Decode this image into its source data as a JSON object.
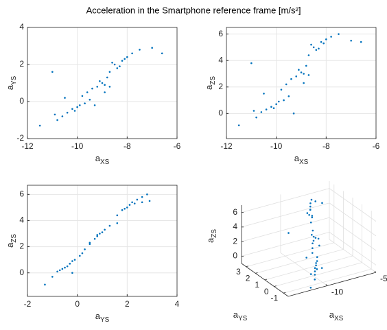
{
  "title": "Acceleration in the Smartphone reference frame [m/s²]",
  "chart_data": [
    {
      "type": "scatter",
      "xlabel": "aXS",
      "ylabel": "aYS",
      "color": "#0072bd",
      "grid": true,
      "xlim": [
        -12,
        -6
      ],
      "ylim": [
        -2,
        4
      ],
      "xticks": [
        -12,
        -10,
        -8,
        -6
      ],
      "yticks": [
        -2,
        0,
        2,
        4
      ],
      "x": [
        -10.2,
        -9.9,
        -10.4,
        -9.7,
        -10.0,
        -10.6,
        -9.5,
        -10.8,
        -11.5,
        -10.1,
        -9.2,
        -8.9,
        -9.4,
        -9.0,
        -8.7,
        -9.6,
        -9.1,
        -8.8,
        -8.5,
        -8.2,
        -8.4,
        -8.0,
        -8.6,
        -7.8,
        -8.3,
        -8.1,
        -7.5,
        -8.7,
        -6.6,
        -9.8,
        -10.9,
        -11.0,
        -9.3,
        -8.9,
        -7.0,
        -10.5
      ],
      "y": [
        -0.4,
        -0.2,
        -0.6,
        -0.1,
        -0.3,
        -0.8,
        0.1,
        -1.0,
        -1.3,
        -0.5,
        0.8,
        0.9,
        0.7,
        1.0,
        0.8,
        0.5,
        1.1,
        1.3,
        2.0,
        2.2,
        1.8,
        2.4,
        2.1,
        2.6,
        1.9,
        2.3,
        2.8,
        1.6,
        2.6,
        0.3,
        -0.7,
        1.6,
        -0.2,
        0.5,
        2.9,
        0.2
      ]
    },
    {
      "type": "scatter",
      "xlabel": "aXS",
      "ylabel": "aZS",
      "color": "#0072bd",
      "grid": true,
      "xlim": [
        -12,
        -6
      ],
      "ylim": [
        -1.9,
        6.5
      ],
      "xticks": [
        -12,
        -10,
        -8,
        -6
      ],
      "yticks": [
        0,
        2,
        4,
        6
      ],
      "x": [
        -10.2,
        -9.9,
        -10.4,
        -9.7,
        -10.0,
        -10.6,
        -9.5,
        -10.8,
        -11.5,
        -10.1,
        -9.2,
        -8.9,
        -9.4,
        -9.0,
        -8.7,
        -9.6,
        -9.1,
        -8.8,
        -8.5,
        -8.2,
        -8.4,
        -8.0,
        -8.6,
        -7.8,
        -8.3,
        -8.1,
        -7.5,
        -8.7,
        -6.6,
        -9.8,
        -10.9,
        -11.0,
        -9.3,
        -8.9,
        -7.0,
        -10.5
      ],
      "y": [
        0.5,
        0.9,
        0.3,
        1.0,
        0.7,
        0.1,
        1.3,
        -0.3,
        -0.9,
        0.4,
        2.8,
        3.0,
        2.6,
        3.1,
        2.9,
        2.2,
        3.3,
        3.6,
        5.0,
        5.4,
        4.8,
        5.6,
        5.2,
        5.8,
        4.9,
        5.3,
        6.0,
        4.4,
        5.4,
        1.8,
        0.2,
        3.8,
        0.0,
        2.3,
        5.5,
        1.5
      ]
    },
    {
      "type": "scatter",
      "xlabel": "aYS",
      "ylabel": "aZS",
      "color": "#0072bd",
      "grid": true,
      "xlim": [
        -2,
        4
      ],
      "ylim": [
        -1.8,
        6.7
      ],
      "xticks": [
        -2,
        0,
        2,
        4
      ],
      "yticks": [
        0,
        2,
        4,
        6
      ],
      "x": [
        -0.4,
        -0.2,
        -0.6,
        -0.1,
        -0.3,
        -0.8,
        0.1,
        -1.0,
        -1.3,
        -0.5,
        0.8,
        0.9,
        0.7,
        1.0,
        0.8,
        0.5,
        1.1,
        1.3,
        2.0,
        2.2,
        1.8,
        2.4,
        2.1,
        2.6,
        1.9,
        2.3,
        2.8,
        1.6,
        2.6,
        0.3,
        -0.7,
        1.6,
        -0.2,
        0.5,
        2.9,
        0.2
      ],
      "y": [
        0.5,
        0.9,
        0.3,
        1.0,
        0.7,
        0.1,
        1.3,
        -0.3,
        -0.9,
        0.4,
        2.8,
        3.0,
        2.6,
        3.1,
        2.9,
        2.2,
        3.3,
        3.6,
        5.0,
        5.4,
        4.8,
        5.6,
        5.2,
        5.8,
        4.9,
        5.3,
        6.0,
        4.4,
        5.4,
        1.8,
        0.2,
        3.8,
        0.0,
        2.3,
        5.5,
        1.5
      ]
    },
    {
      "type": "scatter3d",
      "xlabel": "aXS",
      "ylabel": "aYS",
      "zlabel": "aZS",
      "color": "#0072bd",
      "grid": true,
      "xlim": [
        -14,
        -5
      ],
      "ylim": [
        -1.5,
        3.5
      ],
      "zlim": [
        -1,
        7
      ],
      "xticks": [
        -10,
        -5
      ],
      "yticks": [
        -1,
        0,
        1,
        2,
        3
      ],
      "zticks": [
        0,
        2,
        4,
        6
      ],
      "x": [
        -10.2,
        -9.9,
        -10.4,
        -9.7,
        -10.0,
        -10.6,
        -9.5,
        -10.8,
        -11.5,
        -10.1,
        -9.2,
        -8.9,
        -9.4,
        -9.0,
        -8.7,
        -9.6,
        -9.1,
        -8.8,
        -8.5,
        -8.2,
        -8.4,
        -8.0,
        -8.6,
        -7.8,
        -8.3,
        -8.1,
        -7.5,
        -8.7,
        -6.6,
        -9.8,
        -10.9,
        -11.0,
        -9.3,
        -8.9,
        -7.0,
        -10.5
      ],
      "y": [
        -0.4,
        -0.2,
        -0.6,
        -0.1,
        -0.3,
        -0.8,
        0.1,
        -1.0,
        -1.3,
        -0.5,
        0.8,
        0.9,
        0.7,
        1.0,
        0.8,
        0.5,
        1.1,
        1.3,
        2.0,
        2.2,
        1.8,
        2.4,
        2.1,
        2.6,
        1.9,
        2.3,
        2.8,
        1.6,
        2.6,
        0.3,
        -0.7,
        1.6,
        -0.2,
        0.5,
        2.9,
        0.2
      ],
      "z": [
        0.5,
        0.9,
        0.3,
        1.0,
        0.7,
        0.1,
        1.3,
        -0.3,
        -0.9,
        0.4,
        2.8,
        3.0,
        2.6,
        3.1,
        2.9,
        2.2,
        3.3,
        3.6,
        5.0,
        5.4,
        4.8,
        5.6,
        5.2,
        5.8,
        4.9,
        5.3,
        6.0,
        4.4,
        5.4,
        1.8,
        0.2,
        3.8,
        0.0,
        2.3,
        5.5,
        1.5
      ]
    }
  ]
}
